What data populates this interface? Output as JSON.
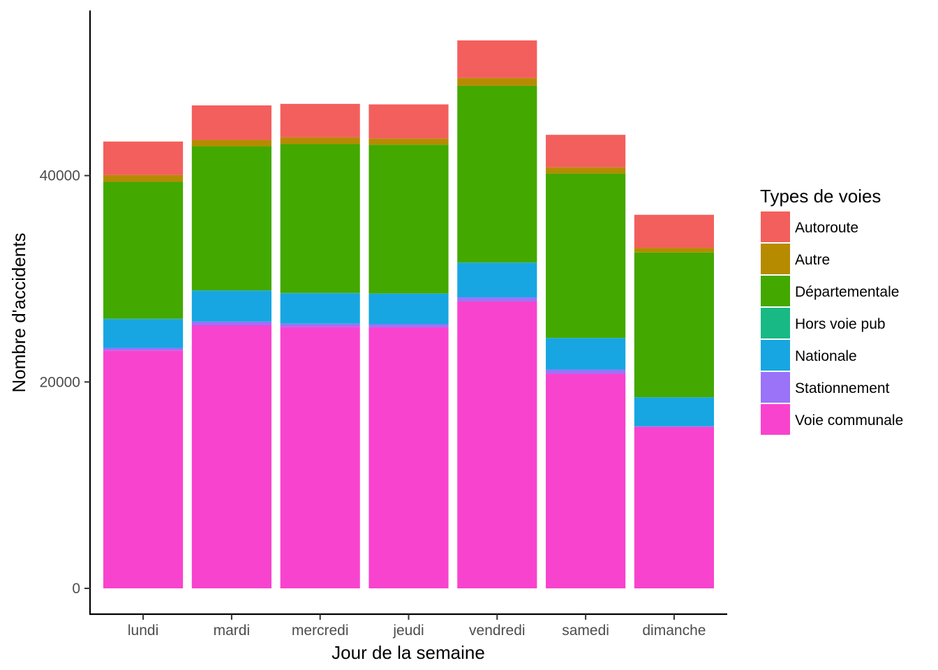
{
  "chart_data": {
    "type": "bar",
    "stacked": true,
    "xlabel": "Jour de la semaine",
    "ylabel": "Nombre d'accidents",
    "ylim": [
      -2500,
      56000
    ],
    "yticks": [
      0,
      20000,
      40000
    ],
    "ytick_labels": [
      "0",
      "20000",
      "40000"
    ],
    "grid": false,
    "legend_title": "Types de voies",
    "legend_position": "right",
    "categories": [
      "lundi",
      "mardi",
      "mercredi",
      "jeudi",
      "vendredi",
      "samedi",
      "dimanche"
    ],
    "series": [
      {
        "name": "Voie communale",
        "color": "#F843CE",
        "values": [
          23050,
          25500,
          25350,
          25300,
          27800,
          20800,
          15650
        ]
      },
      {
        "name": "Stationnement",
        "color": "#9A73F9",
        "values": [
          250,
          350,
          300,
          300,
          400,
          400,
          50
        ]
      },
      {
        "name": "Nationale",
        "color": "#17A6E2",
        "values": [
          2800,
          3000,
          2950,
          2950,
          3350,
          3050,
          2800
        ]
      },
      {
        "name": "Hors voie pub",
        "color": "#18B984",
        "values": [
          20,
          20,
          20,
          20,
          20,
          20,
          20
        ]
      },
      {
        "name": "Départementale",
        "color": "#43A800",
        "values": [
          13280,
          13980,
          14430,
          14430,
          17130,
          15930,
          14030
        ]
      },
      {
        "name": "Autre",
        "color": "#B68B00",
        "values": [
          650,
          600,
          650,
          600,
          750,
          600,
          450
        ]
      },
      {
        "name": "Autoroute",
        "color": "#F35F5C",
        "values": [
          3250,
          3350,
          3250,
          3300,
          3650,
          3150,
          3200
        ]
      }
    ]
  }
}
